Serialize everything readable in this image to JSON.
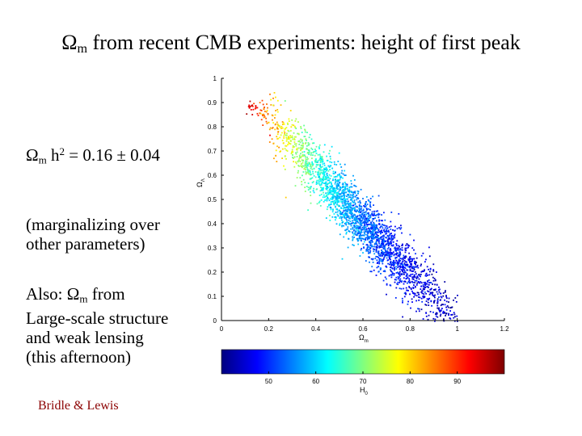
{
  "slide": {
    "title": {
      "prefix": "Ω",
      "sub": "m",
      "rest": " from recent CMB experiments: height of first peak"
    },
    "equation": {
      "prefix": "Ω",
      "sub": "m",
      "mid": " h",
      "sup": "2",
      "rest": " = 0.16 ± 0.04"
    },
    "marginalizing": [
      "(marginalizing over",
      "other parameters)"
    ],
    "also": {
      "prefix": "Also: Ω",
      "sub": "m",
      "rest": " from",
      "lines": [
        "Large-scale structure",
        "and weak lensing",
        "(this afternoon)"
      ]
    },
    "credit": "Bridle & Lewis"
  },
  "colors": {
    "axis": "#000000",
    "credit": "#8b0000"
  },
  "chart_data": {
    "type": "scatter",
    "xlabel": {
      "prefix": "Ω",
      "sub": "m"
    },
    "ylabel": {
      "prefix": "Ω",
      "sub": "Λ"
    },
    "xlim": [
      0,
      1.2
    ],
    "ylim": [
      0,
      1
    ],
    "xticks": [
      0,
      0.2,
      0.4,
      0.6,
      0.8,
      1,
      1.2
    ],
    "xtick_labels": [
      "0",
      "0.2",
      "0.4",
      "0.6",
      "0.8",
      "1",
      "1.2"
    ],
    "yticks": [
      0,
      0.1,
      0.2,
      0.3,
      0.4,
      0.5,
      0.6,
      0.7,
      0.8,
      0.9,
      1
    ],
    "ytick_labels": [
      "0",
      "0.1",
      "0.2",
      "0.3",
      "0.4",
      "0.5",
      "0.6",
      "0.7",
      "0.8",
      "0.9",
      "1"
    ],
    "grid": false,
    "color_variable": {
      "prefix": "H",
      "sub": "0"
    },
    "colorbar": {
      "range": [
        40,
        100
      ],
      "ticks": [
        50,
        60,
        70,
        80,
        90
      ],
      "tick_labels": [
        "50",
        "60",
        "70",
        "80",
        "90"
      ],
      "colormap": "jet",
      "position": "below"
    },
    "band_centerline": [
      {
        "omega_m": 0.1,
        "omega_lambda": 0.91,
        "h0": 97
      },
      {
        "omega_m": 0.2,
        "omega_lambda": 0.84,
        "h0": 84
      },
      {
        "omega_m": 0.3,
        "omega_lambda": 0.73,
        "h0": 74
      },
      {
        "omega_m": 0.4,
        "omega_lambda": 0.62,
        "h0": 65
      },
      {
        "omega_m": 0.5,
        "omega_lambda": 0.51,
        "h0": 59
      },
      {
        "omega_m": 0.6,
        "omega_lambda": 0.4,
        "h0": 54
      },
      {
        "omega_m": 0.7,
        "omega_lambda": 0.3,
        "h0": 50
      },
      {
        "omega_m": 0.8,
        "omega_lambda": 0.2,
        "h0": 47
      },
      {
        "omega_m": 0.9,
        "omega_lambda": 0.1,
        "h0": 45
      },
      {
        "omega_m": 1.0,
        "omega_lambda": 0.03,
        "h0": 43
      }
    ],
    "band_halfwidth": 0.06,
    "sample_count": 2600
  }
}
